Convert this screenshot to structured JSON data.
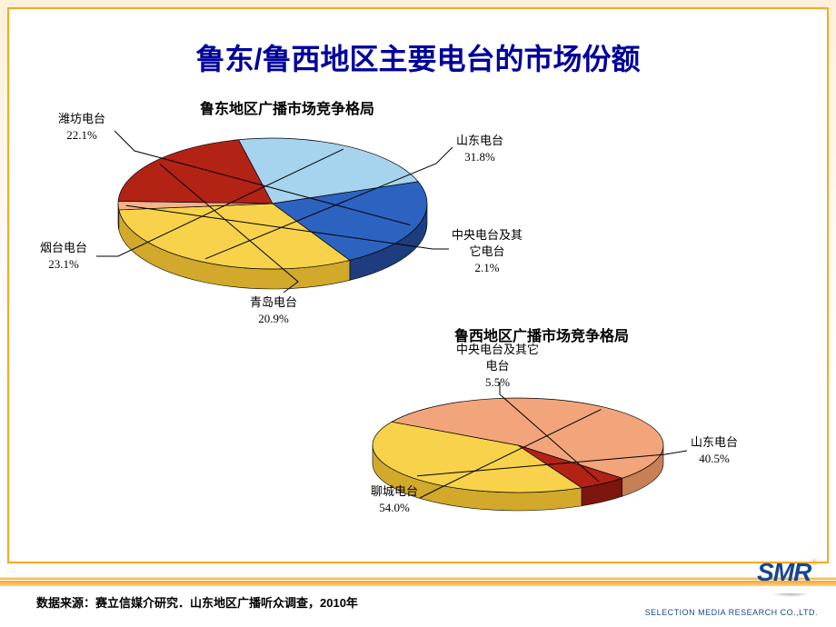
{
  "title": "鲁东/鲁西地区主要电台的市场份额",
  "chart1": {
    "type": "pie-3d",
    "title": "鲁东地区广播市场竞争格局",
    "start_angle": 60,
    "slices": [
      {
        "name": "山东电台",
        "value": 31.8,
        "color": "#f7d24a",
        "side": "#d2a92a",
        "label": "山东电台\n31.8%"
      },
      {
        "name": "中央电台及其它电台",
        "value": 2.1,
        "color": "#f6b28a",
        "side": "#c77f55",
        "label": "中央电台及其\n它电台\n2.1%"
      },
      {
        "name": "青岛电台",
        "value": 20.9,
        "color": "#b22316",
        "side": "#7d160c",
        "label": "青岛电台\n20.9%"
      },
      {
        "name": "烟台电台",
        "value": 23.1,
        "color": "#a6d3ed",
        "side": "#6fa6c8",
        "label": "烟台电台\n23.1%"
      },
      {
        "name": "潍坊电台",
        "value": 22.1,
        "color": "#2d63c0",
        "side": "#1d3d7e",
        "label": "潍坊电台\n22.1%"
      }
    ]
  },
  "chart2": {
    "type": "pie-3d",
    "title": "鲁西地区广播市场竞争格局",
    "start_angle": 64,
    "slices": [
      {
        "name": "山东电台",
        "value": 40.5,
        "color": "#f7d24a",
        "side": "#d2a92a",
        "label": "山东电台\n40.5%"
      },
      {
        "name": "聊城电台",
        "value": 54.0,
        "color": "#f2a57a",
        "side": "#c77f55",
        "label": "聊城电台\n54.0%"
      },
      {
        "name": "中央电台及其它电台",
        "value": 5.5,
        "color": "#b22316",
        "side": "#7d160c",
        "label": "中央电台及其它\n电台\n5.5%"
      }
    ]
  },
  "source": "数据来源：赛立信媒介研究．山东地区广播听众调查，2010年",
  "logo": {
    "brand": "SMR",
    "sub": "SELECTION MEDIA RESEARCH CO.,LTD."
  }
}
